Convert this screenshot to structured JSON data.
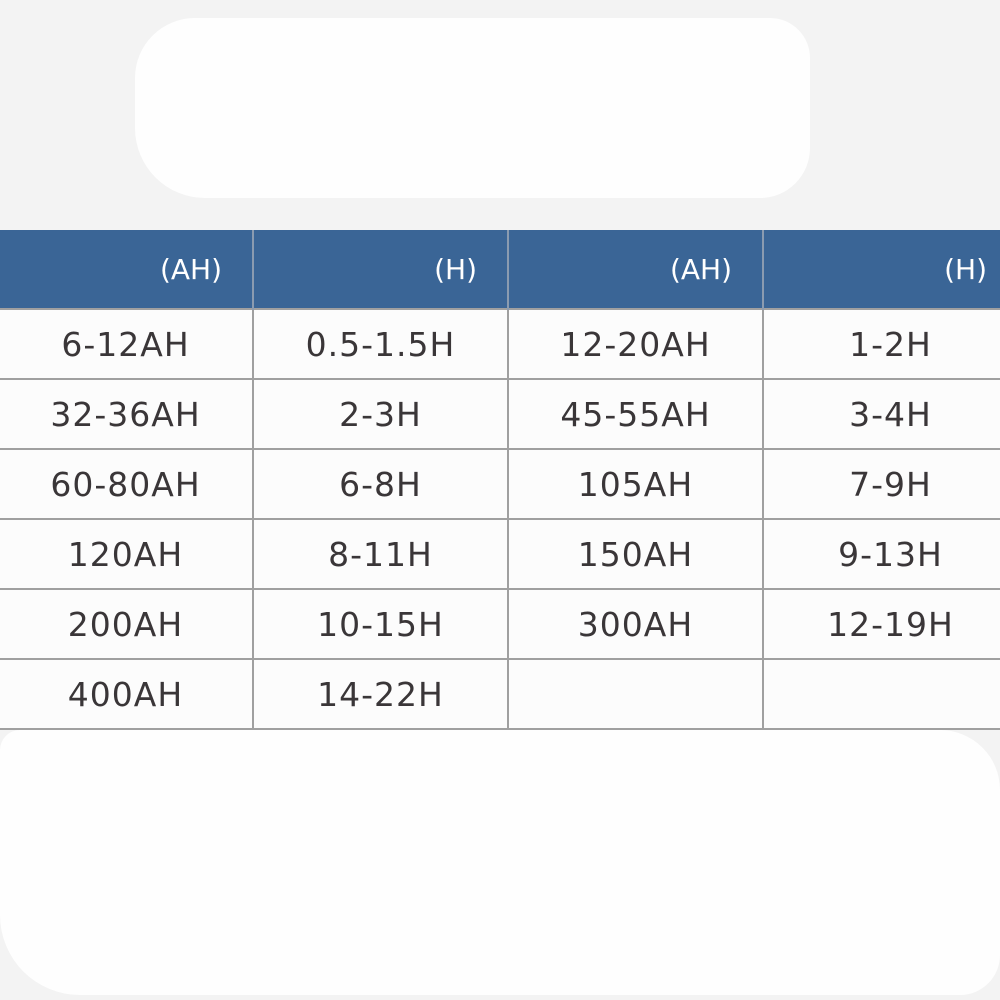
{
  "table": {
    "headers": [
      "(AH)",
      "(H)",
      "(AH)",
      "(H)"
    ],
    "rows": [
      [
        "6-12AH",
        "0.5-1.5H",
        "12-20AH",
        "1-2H"
      ],
      [
        "32-36AH",
        "2-3H",
        "45-55AH",
        "3-4H"
      ],
      [
        "60-80AH",
        "6-8H",
        "105AH",
        "7-9H"
      ],
      [
        "120AH",
        "8-11H",
        "150AH",
        "9-13H"
      ],
      [
        "200AH",
        "10-15H",
        "300AH",
        "12-19H"
      ],
      [
        "400AH",
        "14-22H",
        "",
        ""
      ]
    ]
  },
  "colors": {
    "header_bg": "#3a6596",
    "header_text": "#ffffff",
    "cell_text": "#3a3638"
  }
}
